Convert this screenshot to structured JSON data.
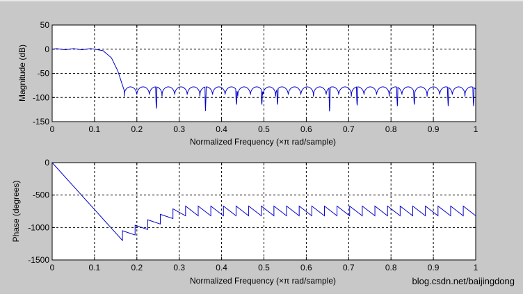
{
  "colors": {
    "figure_bg": "#c8c8c8",
    "plot_bg": "#ffffff",
    "axes": "#000000",
    "grid": "#000000",
    "line": "#0000cc",
    "watermark": "#9a9a9a"
  },
  "watermark": "blog.csdn.net/baijingdong",
  "chart_data": [
    {
      "type": "line",
      "name": "magnitude",
      "title": "",
      "xlabel": "Normalized Frequency  (×π rad/sample)",
      "ylabel": "Magnitude (dB)",
      "xlim": [
        0,
        1
      ],
      "ylim": [
        -150,
        50
      ],
      "grid": true,
      "xticks": [
        0,
        0.1,
        0.2,
        0.3,
        0.4,
        0.5,
        0.6,
        0.7,
        0.8,
        0.9,
        1
      ],
      "xtick_labels": [
        "0",
        "0.1",
        "0.2",
        "0.3",
        "0.4",
        "0.5",
        "0.6",
        "0.7",
        "0.8",
        "0.9",
        "1"
      ],
      "yticks": [
        50,
        0,
        -50,
        -100,
        -150
      ],
      "ytick_labels": [
        "50",
        "0",
        "-50",
        "-100",
        "-150"
      ],
      "passband": {
        "edge": 0.1,
        "ripple_db": 1
      },
      "transition": [
        [
          0.1,
          0
        ],
        [
          0.12,
          -3
        ],
        [
          0.14,
          -18
        ],
        [
          0.155,
          -45
        ],
        [
          0.165,
          -72
        ],
        [
          0.17,
          -85
        ]
      ],
      "stopband": {
        "start": 0.17,
        "end": 1.0,
        "lobe_width": 0.0298,
        "lobe_peak_db": -78,
        "null_db": -98,
        "deep_nulls": [
          [
            0.246,
            -128
          ],
          [
            0.362,
            -128
          ],
          [
            0.435,
            -118
          ],
          [
            0.495,
            -118
          ],
          [
            0.532,
            -118
          ],
          [
            0.655,
            -135
          ],
          [
            0.72,
            -120
          ],
          [
            0.815,
            -118
          ],
          [
            0.855,
            -118
          ],
          [
            0.935,
            -118
          ],
          [
            0.995,
            -118
          ]
        ]
      }
    },
    {
      "type": "line",
      "name": "phase",
      "title": "",
      "xlabel": "Normalized Frequency  (×π rad/sample)",
      "ylabel": "Phase (degrees)",
      "xlim": [
        0,
        1
      ],
      "ylim": [
        -1500,
        0
      ],
      "grid": true,
      "xticks": [
        0,
        0.1,
        0.2,
        0.3,
        0.4,
        0.5,
        0.6,
        0.7,
        0.8,
        0.9,
        1
      ],
      "xtick_labels": [
        "0",
        "0.1",
        "0.2",
        "0.3",
        "0.4",
        "0.5",
        "0.6",
        "0.7",
        "0.8",
        "0.9",
        "1"
      ],
      "yticks": [
        0,
        -500,
        -1000,
        -1500
      ],
      "ytick_labels": [
        "0",
        "-500",
        "-1000",
        "-1500"
      ],
      "linear_segment": [
        [
          0,
          0
        ],
        [
          0.166,
          -1200
        ]
      ],
      "sawtooth": {
        "start": 0.166,
        "end": 1.0,
        "period": 0.0298,
        "low_start": -1200,
        "low_settle": -820,
        "jump": 150,
        "settle_by": 0.3
      }
    }
  ]
}
